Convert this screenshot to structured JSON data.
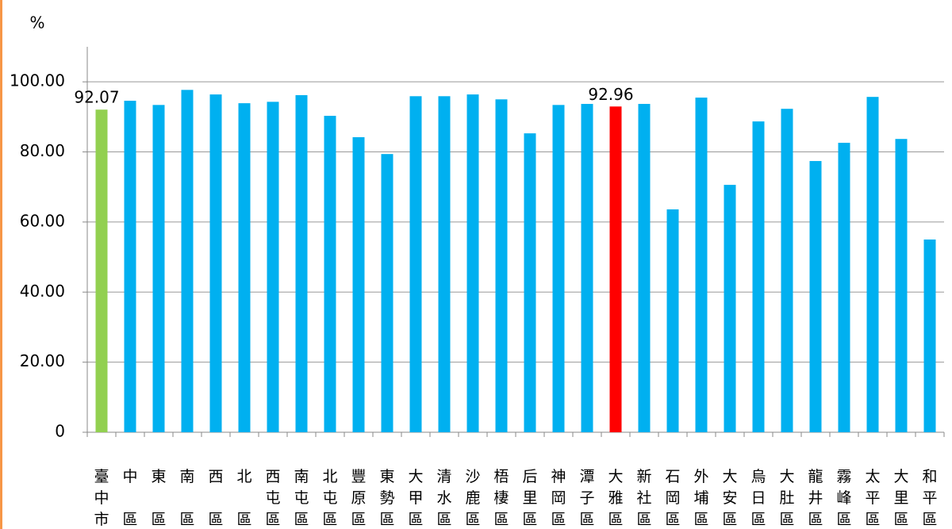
{
  "chart_data": {
    "type": "bar",
    "y_label": "%",
    "categories": [
      "臺中市",
      "中區",
      "東區",
      "南區",
      "西區",
      "北區",
      "西屯區",
      "南屯區",
      "北屯區",
      "豐原區",
      "東勢區",
      "大甲區",
      "清水區",
      "沙鹿區",
      "梧棲區",
      "后里區",
      "神岡區",
      "潭子區",
      "大雅區",
      "新社區",
      "石岡區",
      "外埔區",
      "大安區",
      "烏日區",
      "大肚區",
      "龍井區",
      "霧峰區",
      "太平區",
      "大里區",
      "和平區"
    ],
    "values": [
      92.07,
      94.6,
      93.4,
      97.7,
      96.4,
      93.9,
      94.3,
      96.2,
      90.3,
      84.2,
      79.4,
      95.9,
      95.9,
      96.4,
      95.0,
      85.3,
      93.4,
      93.7,
      92.96,
      93.7,
      63.6,
      95.5,
      70.6,
      88.7,
      92.3,
      77.4,
      82.6,
      95.7,
      83.7,
      55.0
    ],
    "value_labels": [
      "92.07",
      null,
      null,
      null,
      null,
      null,
      null,
      null,
      null,
      null,
      null,
      null,
      null,
      null,
      null,
      null,
      null,
      null,
      "92.96",
      null,
      null,
      null,
      null,
      null,
      null,
      null,
      null,
      null,
      null,
      null
    ],
    "colors": [
      "#92d050",
      "#00b0f0",
      "#00b0f0",
      "#00b0f0",
      "#00b0f0",
      "#00b0f0",
      "#00b0f0",
      "#00b0f0",
      "#00b0f0",
      "#00b0f0",
      "#00b0f0",
      "#00b0f0",
      "#00b0f0",
      "#00b0f0",
      "#00b0f0",
      "#00b0f0",
      "#00b0f0",
      "#00b0f0",
      "#ff0000",
      "#00b0f0",
      "#00b0f0",
      "#00b0f0",
      "#00b0f0",
      "#00b0f0",
      "#00b0f0",
      "#00b0f0",
      "#00b0f0",
      "#00b0f0",
      "#00b0f0",
      "#00b0f0"
    ],
    "ylim": [
      0,
      110
    ],
    "yticks": [
      0,
      {
        "value": 20,
        "label": "20.00"
      },
      {
        "value": 40,
        "label": "40.00"
      },
      {
        "value": 60,
        "label": "60.00"
      },
      {
        "value": 80,
        "label": "80.00"
      },
      {
        "value": 100,
        "label": "100.00"
      }
    ],
    "grid": true
  }
}
